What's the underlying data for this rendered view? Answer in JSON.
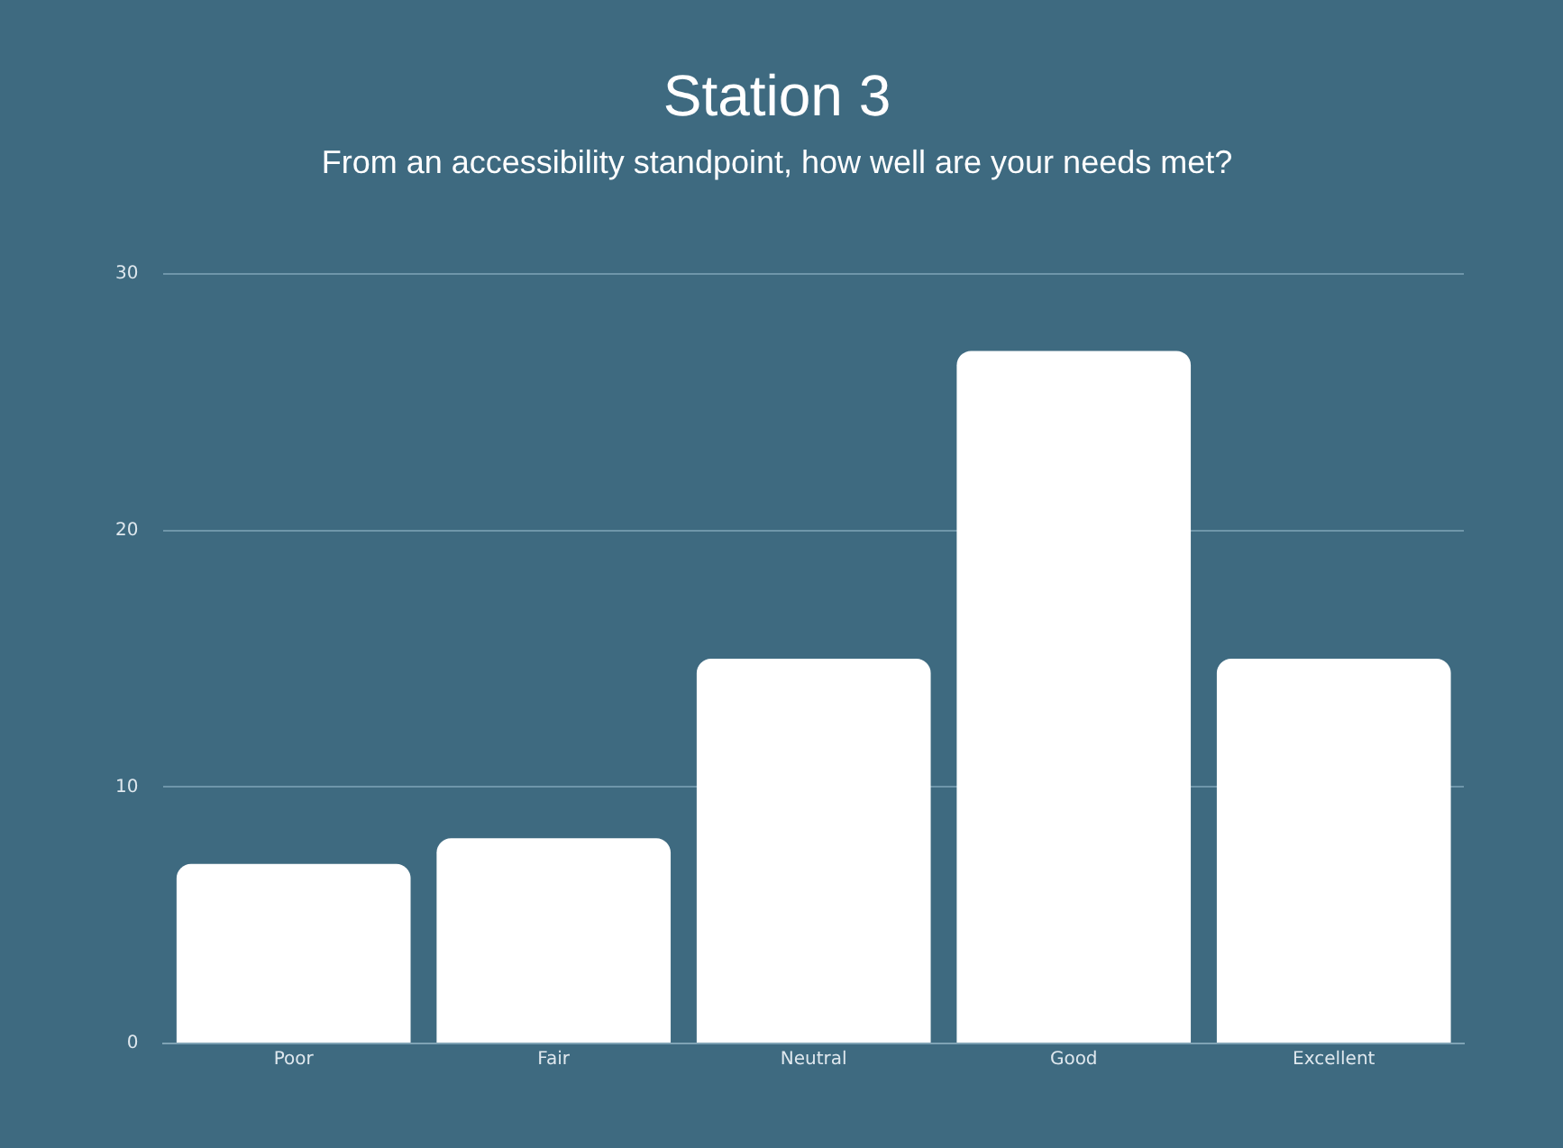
{
  "chart_data": {
    "type": "bar",
    "title": "Station 3",
    "subtitle": "From an accessibility standpoint, how well are your needs met?",
    "categories": [
      "Poor",
      "Fair",
      "Neutral",
      "Good",
      "Excellent"
    ],
    "values": [
      7,
      8,
      15,
      27,
      15
    ],
    "color": "#ffffff",
    "ylim": [
      0,
      30
    ],
    "yticks": [
      0,
      10,
      20,
      30
    ],
    "grid": "y"
  }
}
